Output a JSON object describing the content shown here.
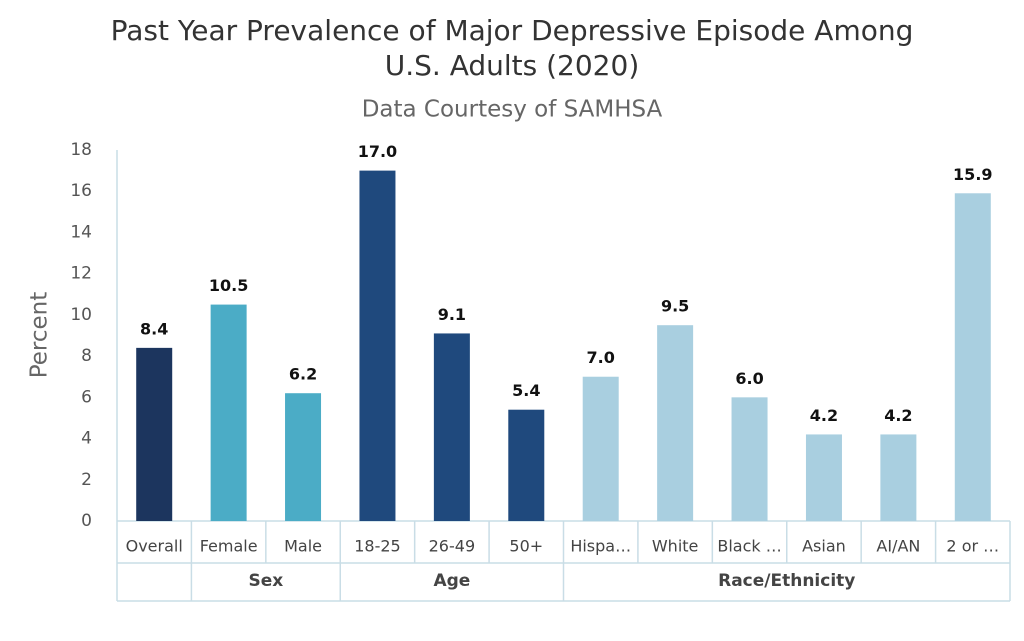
{
  "chart_data": {
    "type": "bar",
    "title": [
      "Past Year Prevalence of Major Depressive Episode Among",
      "U.S. Adults (2020)"
    ],
    "subtitle": "Data Courtesy of SAMHSA",
    "y_label": "Percent",
    "categories": [
      "Overall",
      "Female",
      "Male",
      "18-25",
      "26-49",
      "50+",
      "Hispa…",
      "White",
      "Black …",
      "Asian",
      "AI/AN",
      "2 or …"
    ],
    "category_groups": [
      null,
      "Sex",
      "Sex",
      "Age",
      "Age",
      "Age",
      "Race/Ethnicity",
      "Race/Ethnicity",
      "Race/Ethnicity",
      "Race/Ethnicity",
      "Race/Ethnicity",
      "Race/Ethnicity"
    ],
    "values": [
      8.4,
      10.5,
      6.2,
      17,
      9.1,
      5.4,
      7,
      9.5,
      6,
      4.2,
      4.2,
      15.9
    ],
    "value_labels": [
      "8.4",
      "10.5",
      "6.2",
      "17.0",
      "9.1",
      "5.4",
      "7.0",
      "9.5",
      "6.0",
      "4.2",
      "4.2",
      "15.9"
    ],
    "colors": [
      "#1c355e",
      "#4bacc6",
      "#4bacc6",
      "#1f497d",
      "#1f497d",
      "#1f497d",
      "#a9cfe0",
      "#a9cfe0",
      "#a9cfe0",
      "#a9cfe0",
      "#a9cfe0",
      "#a9cfe0"
    ],
    "ylim": [
      0,
      18
    ],
    "yticks": [
      0,
      2,
      4,
      6,
      8,
      10,
      12,
      14,
      16,
      18
    ],
    "grid": false
  }
}
